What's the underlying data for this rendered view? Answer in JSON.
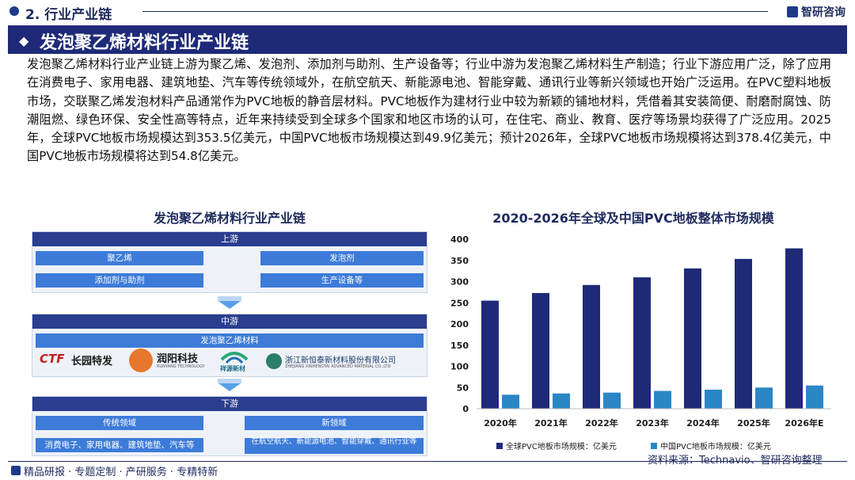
{
  "header": {
    "section": "2. 行业产业链",
    "brand": "智研咨询"
  },
  "banner": {
    "title": "发泡聚乙烯材料行业产业链"
  },
  "paragraph": "发泡聚乙烯材料行业产业链上游为聚乙烯、发泡剂、添加剂与助剂、生产设备等；行业中游为发泡聚乙烯材料生产制造；行业下游应用广泛，除了应用在消费电子、家用电器、建筑地垫、汽车等传统领域外，在航空航天、新能源电池、智能穿戴、通讯行业等新兴领域也开始广泛运用。在PVC塑料地板市场，交联聚乙烯发泡材料产品通常作为PVC地板的静音层材料。PVC地板作为建材行业中较为新颖的铺地材料，凭借着其安装简便、耐磨耐腐蚀、防潮阻燃、绿色环保、安全性高等特点，近年来持续受到全球多个国家和地区市场的认可，在住宅、商业、教育、医疗等场景均获得了广泛应用。2025年，全球PVC地板市场规模达到353.5亿美元，中国PVC地板市场规模达到49.9亿美元；预计2026年，全球PVC地板市场规模将达到378.4亿美元，中国PVC地板市场规模将达到54.8亿美元。",
  "chain": {
    "title": "发泡聚乙烯材料行业产业链",
    "upstream": {
      "label": "上游",
      "items": [
        "聚乙烯",
        "发泡剂",
        "添加剂与助剂",
        "生产设备等"
      ]
    },
    "midstream": {
      "label": "中游",
      "item": "发泡聚乙烯材料",
      "logos": {
        "ctf_mark": "CTF",
        "ctf_name": "长园特发",
        "runyang_name": "润阳科技",
        "runyang_sub": "RUNYANG TECHNOLOGY",
        "xiangyuan_name": "祥源新材",
        "zhejiang_name": "浙江新恒泰新材料股份有限公司",
        "zhejiang_sub": "ZHEJIANG XINHENGTAI ADVANCED MATERIAL CO.,LTD"
      }
    },
    "downstream": {
      "label": "下游",
      "traditional_label": "传统领域",
      "traditional_items": "消费电子、家用电器、建筑地垫、汽车等",
      "new_label": "新领域",
      "new_items": "在航空航天、新能源电池、智能穿戴、通讯行业等"
    }
  },
  "colors": {
    "global": "#1e2a78",
    "china": "#2b86c5",
    "banner": "#1e2a78"
  },
  "chart_data": {
    "type": "bar",
    "title": "2020-2026年全球及中国PVC地板整体市场规模",
    "categories": [
      "2020年",
      "2021年",
      "2022年",
      "2023年",
      "2024年",
      "2025年",
      "2026年E"
    ],
    "series": [
      {
        "name": "全球PVC地板市场规模：亿美元",
        "values": [
          255,
          273,
          292,
          310,
          331,
          353.5,
          378.4
        ]
      },
      {
        "name": "中国PVC地板市场规模：亿美元",
        "values": [
          33,
          36,
          38,
          42,
          45,
          49.9,
          54.8
        ]
      }
    ],
    "ylim": [
      0,
      400
    ],
    "yticks": [
      0,
      50,
      100,
      150,
      200,
      250,
      300,
      350,
      400
    ],
    "legend_position": "bottom",
    "grid": false
  },
  "source": "资料来源：Technavio、智研咨询整理",
  "footer": "精品研报 · 专题定制 · 产研服务 · 专精特新"
}
